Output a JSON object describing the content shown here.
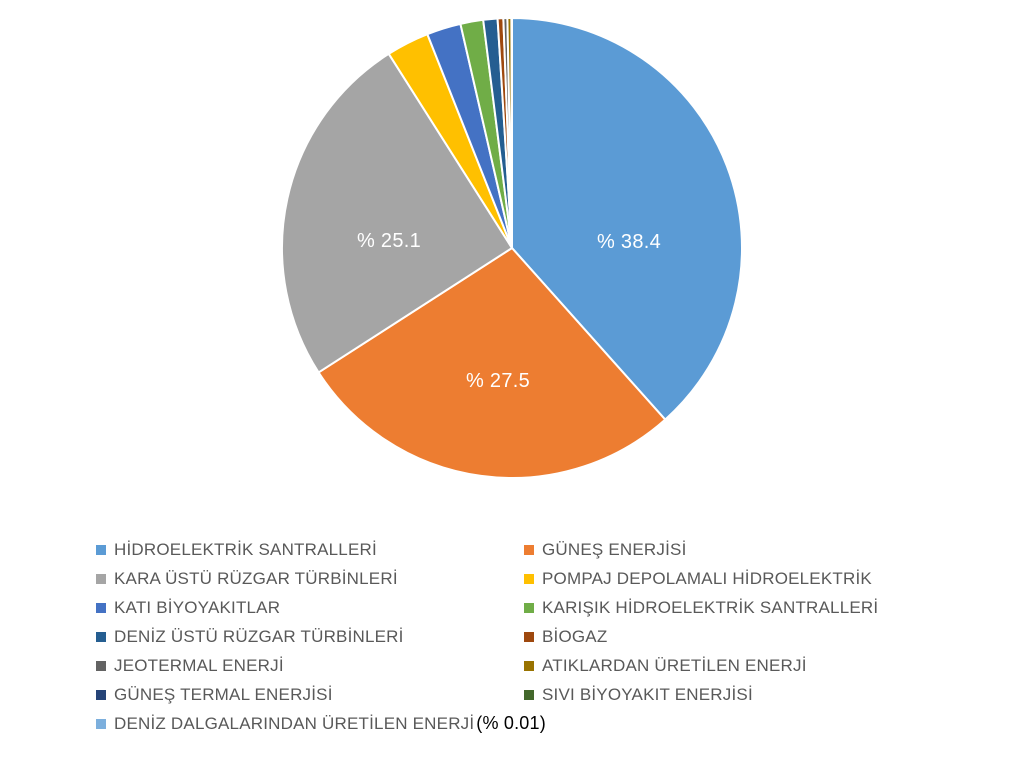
{
  "chart_data": {
    "type": "pie",
    "title": "",
    "legend_position": "bottom-two-columns",
    "start_angle_deg": 0,
    "direction": "clockwise",
    "note": "Only the three large slices and the smallest slice carry visible text labels; remaining slice values are estimated from arc angles.",
    "segments": [
      {
        "name": "HİDROELEKTRİK SANTRALLERİ",
        "value": 38.4,
        "color": "#5B9BD5",
        "label": "% 38.4"
      },
      {
        "name": "GÜNEŞ ENERJİSİ",
        "value": 27.5,
        "color": "#ED7D31",
        "label": "% 27.5"
      },
      {
        "name": "KARA ÜSTÜ RÜZGAR TÜRBİNLERİ",
        "value": 25.1,
        "color": "#A5A5A5",
        "label": "% 25.1"
      },
      {
        "name": "POMPAJ DEPOLAMALI HİDROELEKTRİK",
        "value": 3.0,
        "color": "#FFC000",
        "label": ""
      },
      {
        "name": "KATI BİYOYAKITLAR",
        "value": 2.4,
        "color": "#4472C4",
        "label": ""
      },
      {
        "name": "KARIŞIK HİDROELEKTRİK SANTRALLERİ",
        "value": 1.6,
        "color": "#70AD47",
        "label": ""
      },
      {
        "name": "DENİZ ÜSTÜ RÜZGAR TÜRBİNLERİ",
        "value": 1.0,
        "color": "#255E91",
        "label": ""
      },
      {
        "name": "BİOGAZ",
        "value": 0.4,
        "color": "#9E480E",
        "label": ""
      },
      {
        "name": "JEOTERMAL ENERJİ",
        "value": 0.28,
        "color": "#636363",
        "label": ""
      },
      {
        "name": "ATIKLARDAN ÜRETİLEN ENERJİ",
        "value": 0.28,
        "color": "#997300",
        "label": ""
      },
      {
        "name": "GÜNEŞ TERMAL ENERJİSİ",
        "value": 0.025,
        "color": "#264478",
        "label": ""
      },
      {
        "name": "SIVI BİYOYAKIT ENERJİSİ",
        "value": 0.005,
        "color": "#43682B",
        "label": ""
      },
      {
        "name": "DENİZ DALGALARINDAN ÜRETİLEN ENERJİ",
        "value": 0.01,
        "color": "#7CAFDD",
        "label": "",
        "annotation": "(% 0.01)"
      }
    ],
    "slice_border_color": "#FFFFFF",
    "label_text_color": "#FFFFFF",
    "legend_text_color": "#595959",
    "annotation_text_color": "#000000"
  }
}
